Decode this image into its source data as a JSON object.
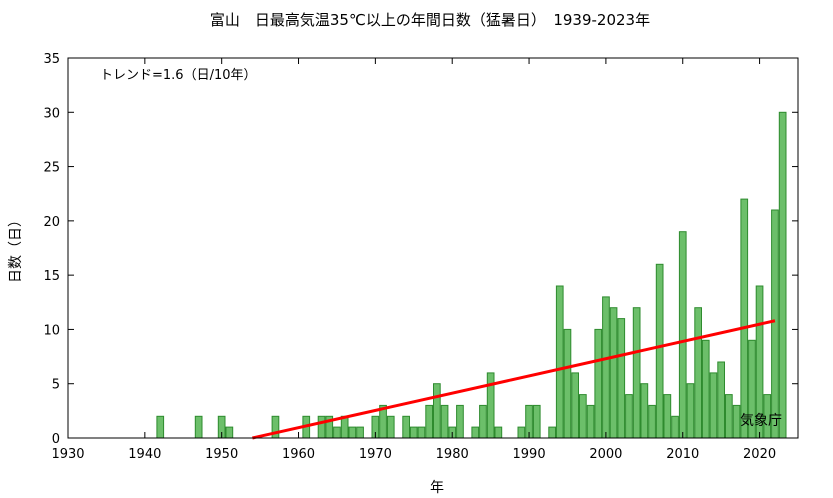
{
  "chart_data": {
    "type": "bar",
    "title": "富山　日最高気温35℃以上の年間日数（猛暑日）　1939-2023年",
    "xlabel": "年",
    "ylabel": "日数（日）",
    "trend_label": "トレンド=1.6（日/10年）",
    "credit": "気象庁",
    "xlim": [
      1930,
      2025
    ],
    "ylim": [
      0,
      35
    ],
    "xticks": [
      1930,
      1940,
      1950,
      1960,
      1970,
      1980,
      1990,
      2000,
      2010,
      2020
    ],
    "yticks": [
      0,
      5,
      10,
      15,
      20,
      25,
      30,
      35
    ],
    "grid": false,
    "colors": {
      "bar_fill": "#6cbf6a",
      "bar_edge": "#2e8b2e",
      "trend": "#ff0000"
    },
    "x": [
      1939,
      1940,
      1941,
      1942,
      1943,
      1944,
      1945,
      1946,
      1947,
      1948,
      1949,
      1950,
      1951,
      1952,
      1953,
      1954,
      1955,
      1956,
      1957,
      1958,
      1959,
      1960,
      1961,
      1962,
      1963,
      1964,
      1965,
      1966,
      1967,
      1968,
      1969,
      1970,
      1971,
      1972,
      1973,
      1974,
      1975,
      1976,
      1977,
      1978,
      1979,
      1980,
      1981,
      1982,
      1983,
      1984,
      1985,
      1986,
      1987,
      1988,
      1989,
      1990,
      1991,
      1992,
      1993,
      1994,
      1995,
      1996,
      1997,
      1998,
      1999,
      2000,
      2001,
      2002,
      2003,
      2004,
      2005,
      2006,
      2007,
      2008,
      2009,
      2010,
      2011,
      2012,
      2013,
      2014,
      2015,
      2016,
      2017,
      2018,
      2019,
      2020,
      2021,
      2022,
      2023
    ],
    "values": [
      0,
      0,
      0,
      2,
      0,
      0,
      0,
      0,
      2,
      0,
      0,
      2,
      1,
      0,
      0,
      0,
      0,
      0,
      2,
      0,
      0,
      0,
      2,
      0,
      2,
      2,
      1,
      2,
      1,
      1,
      0,
      2,
      3,
      2,
      0,
      2,
      1,
      1,
      3,
      5,
      3,
      1,
      3,
      0,
      1,
      3,
      6,
      1,
      0,
      0,
      1,
      3,
      3,
      0,
      1,
      14,
      10,
      6,
      4,
      3,
      10,
      13,
      12,
      11,
      4,
      12,
      5,
      3,
      16,
      4,
      2,
      19,
      5,
      12,
      9,
      6,
      7,
      4,
      3,
      22,
      9,
      14,
      4,
      21,
      30
    ],
    "trend": {
      "x": [
        1954,
        2022
      ],
      "y": [
        0,
        10.8
      ]
    }
  }
}
